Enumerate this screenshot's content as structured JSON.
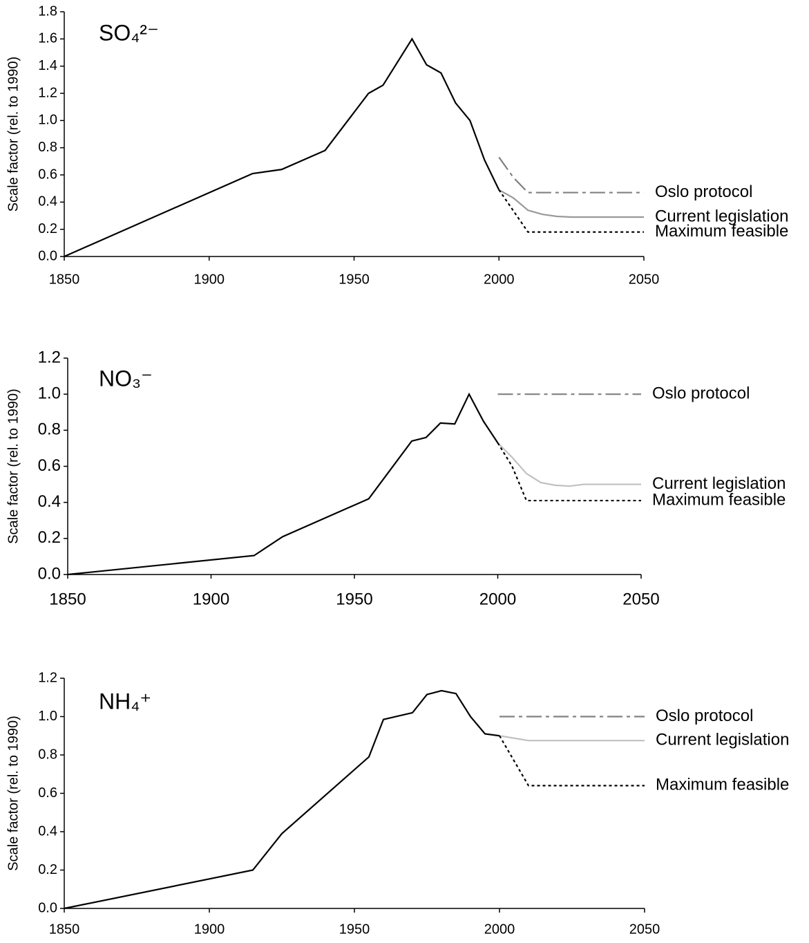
{
  "chart_data": [
    {
      "type": "line",
      "title": "SO₄²⁻",
      "ylabel": "Scale factor (rel. to 1990)",
      "xlim": [
        1850,
        2050
      ],
      "xticks": [
        1850,
        1900,
        1950,
        2000,
        2050
      ],
      "ylim": [
        0,
        1.8
      ],
      "yticks": [
        {
          "value": 0,
          "label": "0.0"
        },
        0.2,
        0.4,
        0.6,
        0.8,
        {
          "value": 1,
          "label": "1.0"
        },
        1.2,
        1.4,
        1.6,
        1.8
      ],
      "series": [
        {
          "color": "#000000",
          "dash": "solid",
          "x": [
            1850,
            1915,
            1925,
            1940,
            1955,
            1960,
            1970,
            1975,
            1980,
            1985,
            1990,
            1995,
            2000
          ],
          "values": [
            0,
            0.61,
            0.64,
            0.78,
            1.2,
            1.26,
            1.6,
            1.41,
            1.35,
            1.13,
            1.0,
            0.71,
            0.49
          ]
        },
        {
          "name": "Oslo protocol",
          "color": "#808080",
          "dash": "dashdot",
          "x": [
            2000,
            2005,
            2010,
            2050
          ],
          "values": [
            0.73,
            0.58,
            0.47,
            0.47
          ]
        },
        {
          "name": "Current legislation",
          "color": "#999999",
          "dash": "solid",
          "x": [
            2000,
            2005,
            2010,
            2015,
            2020,
            2025,
            2050
          ],
          "values": [
            0.49,
            0.43,
            0.34,
            0.31,
            0.295,
            0.29,
            0.29
          ]
        },
        {
          "name": "Maximum feasible",
          "color": "#000000",
          "dash": "dotted",
          "x": [
            2000,
            2010,
            2050
          ],
          "values": [
            0.49,
            0.18,
            0.18
          ]
        }
      ]
    },
    {
      "type": "line",
      "title": "NO₃⁻",
      "ylabel": "Scale factor (rel. to 1990)",
      "xlim": [
        1850,
        2050
      ],
      "xticks": [
        1850,
        1900,
        1950,
        2000,
        2050
      ],
      "ylim": [
        0,
        1.2
      ],
      "yticks": [
        {
          "value": 0,
          "label": "0.0"
        },
        0.2,
        0.4,
        0.6,
        0.8,
        {
          "value": 1,
          "label": "1.0"
        },
        1.2
      ],
      "series": [
        {
          "color": "#000000",
          "dash": "solid",
          "x": [
            1850,
            1915,
            1925,
            1955,
            1970,
            1975,
            1980,
            1985,
            1990,
            1995,
            2000
          ],
          "values": [
            0,
            0.105,
            0.21,
            0.42,
            0.74,
            0.76,
            0.84,
            0.835,
            1.0,
            0.85,
            0.73
          ]
        },
        {
          "name": "Oslo protocol",
          "color": "#808080",
          "dash": "dashdot",
          "x": [
            2000,
            2050
          ],
          "values": [
            1.0,
            1.0
          ]
        },
        {
          "name": "Current legislation",
          "color": "#c0c0c0",
          "dash": "solid",
          "x": [
            2000,
            2005,
            2010,
            2015,
            2020,
            2025,
            2030,
            2050
          ],
          "values": [
            0.73,
            0.65,
            0.56,
            0.51,
            0.495,
            0.49,
            0.5,
            0.5
          ]
        },
        {
          "name": "Maximum feasible",
          "color": "#000000",
          "dash": "dotted",
          "x": [
            2000,
            2005,
            2010,
            2050
          ],
          "values": [
            0.73,
            0.6,
            0.41,
            0.41
          ]
        }
      ]
    },
    {
      "type": "line",
      "title": "NH₄⁺",
      "ylabel": "Scale factor (rel. to 1990)",
      "xlim": [
        1850,
        2050
      ],
      "xticks": [
        1850,
        1900,
        1950,
        2000,
        2050
      ],
      "ylim": [
        0,
        1.2
      ],
      "yticks": [
        {
          "value": 0,
          "label": "0.0"
        },
        0.2,
        0.4,
        0.6,
        0.8,
        {
          "value": 1,
          "label": "1.0"
        },
        1.2
      ],
      "series": [
        {
          "color": "#000000",
          "dash": "solid",
          "x": [
            1850,
            1915,
            1925,
            1955,
            1960,
            1970,
            1975,
            1980,
            1985,
            1990,
            1995,
            2000
          ],
          "values": [
            0,
            0.2,
            0.39,
            0.79,
            0.985,
            1.02,
            1.115,
            1.135,
            1.12,
            1.0,
            0.91,
            0.9
          ]
        },
        {
          "name": "Oslo protocol",
          "color": "#808080",
          "dash": "dashdot",
          "x": [
            2000,
            2050
          ],
          "values": [
            1.0,
            1.0
          ]
        },
        {
          "name": "Current legislation",
          "color": "#c0c0c0",
          "dash": "solid",
          "x": [
            2000,
            2010,
            2050
          ],
          "values": [
            0.9,
            0.875,
            0.875
          ]
        },
        {
          "name": "Maximum feasible",
          "color": "#000000",
          "dash": "dotted",
          "x": [
            2000,
            2010,
            2050
          ],
          "values": [
            0.9,
            0.64,
            0.64
          ]
        }
      ]
    }
  ]
}
